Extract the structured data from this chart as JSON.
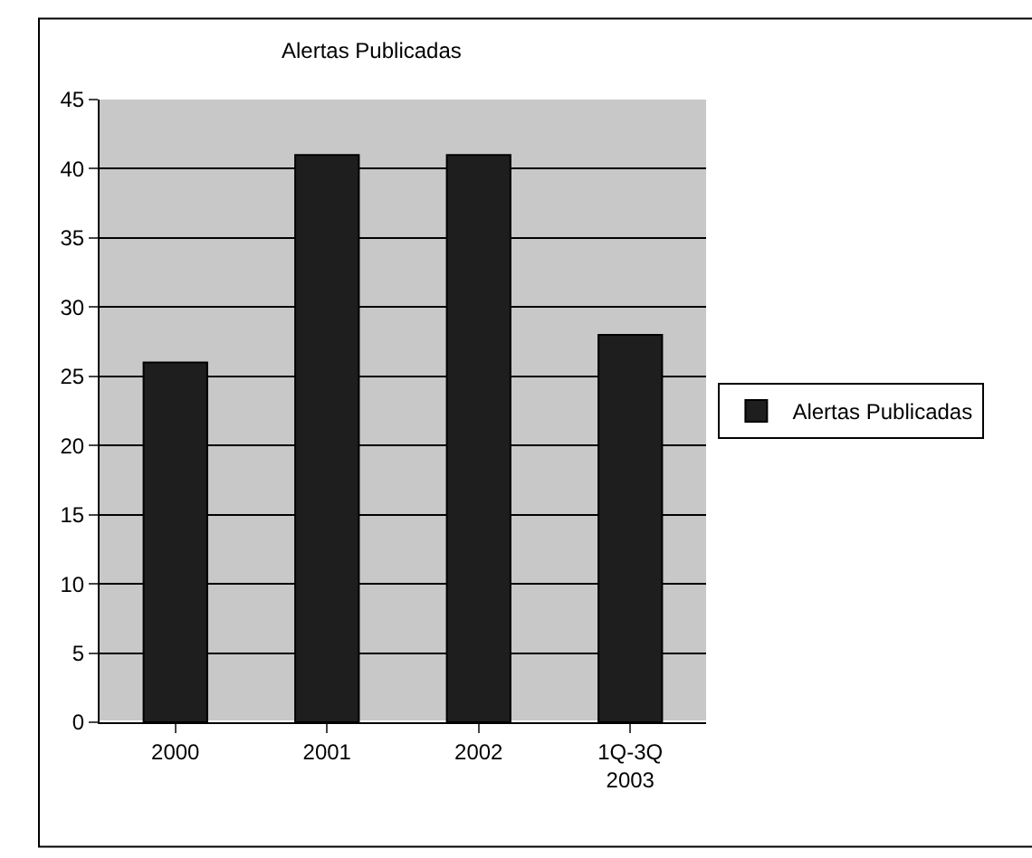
{
  "chart_data": {
    "type": "bar",
    "title": "Alertas Publicadas",
    "categories": [
      "2000",
      "2001",
      "2002",
      "1Q-3Q 2003"
    ],
    "series": [
      {
        "name": "Alertas Publicadas",
        "color": "#1e1e1e",
        "values": [
          26,
          41,
          41,
          28
        ]
      }
    ],
    "ylim": [
      0,
      45
    ],
    "yticks": [
      0,
      5,
      10,
      15,
      20,
      25,
      30,
      35,
      40,
      45
    ],
    "grid": "y",
    "legend": "right"
  }
}
